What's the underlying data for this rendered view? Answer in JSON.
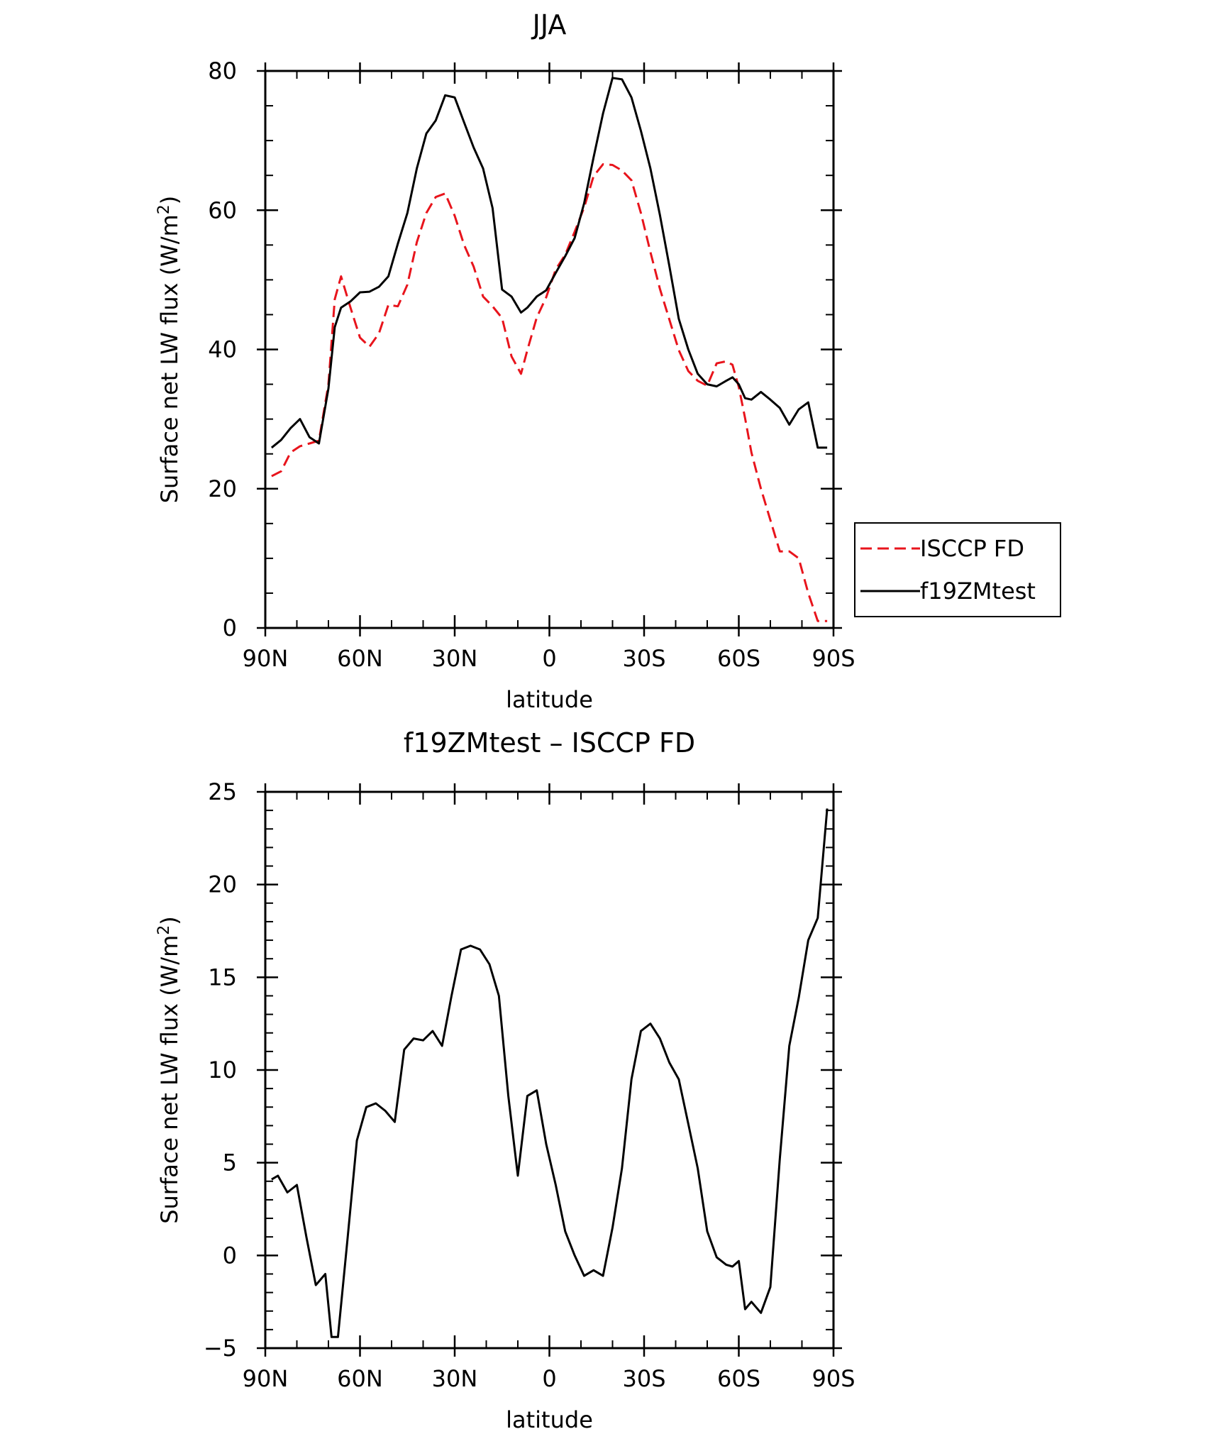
{
  "chart_data": [
    {
      "type": "line",
      "title": "JJA",
      "xlabel": "latitude",
      "ylabel": "Surface net LW flux (W/m²)",
      "ylabel_main": "Surface net LW flux (W/m",
      "ylabel_sup": "2",
      "ylabel_close": ")",
      "xlim": [
        -90,
        90
      ],
      "ylim": [
        0,
        80
      ],
      "x_ticks": [
        {
          "value": -90,
          "label": "90N"
        },
        {
          "value": -60,
          "label": "60N"
        },
        {
          "value": -30,
          "label": "30N"
        },
        {
          "value": 0,
          "label": "0"
        },
        {
          "value": 30,
          "label": "30S"
        },
        {
          "value": 60,
          "label": "60S"
        },
        {
          "value": 90,
          "label": "90S"
        }
      ],
      "y_ticks": [
        0,
        20,
        40,
        60,
        80
      ],
      "y_minor_step": 5,
      "x_minor_step": 10,
      "legend": {
        "placement": "right",
        "entries": [
          "ISCCP FD",
          "f19ZMtest"
        ]
      },
      "series": [
        {
          "name": "ISCCP FD",
          "color": "#e8141c",
          "dash": "dashed",
          "x": [
            -88,
            -85,
            -82,
            -79,
            -76,
            -73,
            -70,
            -68,
            -66,
            -63,
            -60,
            -57,
            -54,
            -51,
            -48,
            -45,
            -42,
            -39,
            -36,
            -33,
            -30,
            -27,
            -24,
            -21,
            -18,
            -15,
            -12,
            -9,
            -7,
            -4,
            -1,
            2,
            5,
            8,
            11,
            14,
            17,
            20,
            23,
            26,
            29,
            32,
            35,
            38,
            41,
            44,
            47,
            50,
            53,
            56,
            58,
            60,
            62,
            64,
            67,
            70,
            73,
            76,
            79,
            82,
            85,
            88
          ],
          "values": [
            21.8,
            22.5,
            25.2,
            26.1,
            26.5,
            26.9,
            35.0,
            47.2,
            50.5,
            46.0,
            41.7,
            40.4,
            42.3,
            46.4,
            46.2,
            49.3,
            55.4,
            59.6,
            61.9,
            62.4,
            59.2,
            55.0,
            51.9,
            47.6,
            46.2,
            44.5,
            39.0,
            36.5,
            39.9,
            44.6,
            47.5,
            51.5,
            53.6,
            56.9,
            60.4,
            64.9,
            66.6,
            66.5,
            65.7,
            64.3,
            59.6,
            54.0,
            48.7,
            44.3,
            39.9,
            36.9,
            35.5,
            34.8,
            38.0,
            38.3,
            37.8,
            34.6,
            30.1,
            25.2,
            20.0,
            15.5,
            11.0,
            11.0,
            10.0,
            5.0,
            1.0,
            1.0
          ]
        },
        {
          "name": "f19ZMtest",
          "color": "#000000",
          "dash": "solid",
          "x": [
            -88,
            -85,
            -82,
            -79,
            -76,
            -73,
            -70,
            -68,
            -66,
            -63,
            -60,
            -57,
            -54,
            -51,
            -48,
            -45,
            -42,
            -39,
            -36,
            -33,
            -30,
            -27,
            -24,
            -21,
            -18,
            -15,
            -12,
            -9,
            -7,
            -4,
            -1,
            2,
            5,
            8,
            11,
            14,
            17,
            20,
            23,
            26,
            29,
            32,
            35,
            38,
            41,
            44,
            47,
            50,
            53,
            56,
            58,
            60,
            62,
            64,
            67,
            70,
            73,
            76,
            79,
            82,
            85,
            88
          ],
          "values": [
            25.9,
            27.0,
            28.7,
            30.0,
            27.4,
            26.5,
            34.4,
            43.2,
            46.0,
            46.9,
            48.2,
            48.3,
            49.0,
            50.5,
            55.2,
            59.6,
            66.0,
            71.0,
            72.9,
            76.5,
            76.2,
            72.6,
            69.0,
            66.0,
            60.3,
            48.6,
            47.6,
            45.3,
            46.0,
            47.6,
            48.5,
            51.0,
            53.4,
            56.0,
            61.0,
            67.6,
            73.9,
            79.0,
            78.8,
            76.2,
            71.4,
            66.0,
            59.3,
            52.0,
            44.4,
            40.0,
            36.5,
            35.0,
            34.7,
            35.5,
            36.0,
            35.0,
            33.0,
            32.8,
            33.9,
            32.8,
            31.6,
            29.2,
            31.4,
            32.4,
            25.9,
            25.9
          ]
        }
      ]
    },
    {
      "type": "line",
      "title": "f19ZMtest – ISCCP FD",
      "xlabel": "latitude",
      "ylabel": "Surface net LW flux (W/m²)",
      "ylabel_main": "Surface net LW flux (W/m",
      "ylabel_sup": "2",
      "ylabel_close": ")",
      "xlim": [
        -90,
        90
      ],
      "ylim": [
        -5,
        25
      ],
      "x_ticks": [
        {
          "value": -90,
          "label": "90N"
        },
        {
          "value": -60,
          "label": "60N"
        },
        {
          "value": -30,
          "label": "30N"
        },
        {
          "value": 0,
          "label": "0"
        },
        {
          "value": 30,
          "label": "30S"
        },
        {
          "value": 60,
          "label": "60S"
        },
        {
          "value": 90,
          "label": "90S"
        }
      ],
      "y_ticks": [
        {
          "value": -5,
          "label": "−5"
        },
        {
          "value": 0,
          "label": "0"
        },
        {
          "value": 5,
          "label": "5"
        },
        {
          "value": 10,
          "label": "10"
        },
        {
          "value": 15,
          "label": "15"
        },
        {
          "value": 20,
          "label": "20"
        },
        {
          "value": 25,
          "label": "25"
        }
      ],
      "y_minor_step": 1,
      "x_minor_step": 10,
      "series": [
        {
          "color": "#000000",
          "dash": "solid",
          "x": [
            -88,
            -86,
            -83,
            -80,
            -77,
            -74,
            -71,
            -69,
            -67,
            -64,
            -61,
            -58,
            -55,
            -52,
            -49,
            -46,
            -43,
            -40,
            -37,
            -34,
            -31,
            -28,
            -25,
            -22,
            -19,
            -16,
            -13,
            -10,
            -7,
            -4,
            -1,
            2,
            5,
            8,
            11,
            14,
            17,
            20,
            23,
            26,
            29,
            32,
            35,
            38,
            41,
            44,
            47,
            50,
            53,
            56,
            58,
            60,
            62,
            64,
            67,
            70,
            73,
            76,
            79,
            82,
            85,
            88
          ],
          "values": [
            4.1,
            4.3,
            3.4,
            3.8,
            1.0,
            -1.6,
            -1.0,
            -4.4,
            -4.4,
            0.8,
            6.2,
            8.0,
            8.2,
            7.8,
            7.2,
            11.1,
            11.7,
            11.6,
            12.1,
            11.3,
            14.0,
            16.5,
            16.7,
            16.5,
            15.7,
            14.0,
            8.6,
            4.3,
            8.6,
            8.9,
            6.0,
            3.8,
            1.3,
            0.0,
            -1.1,
            -0.8,
            -1.1,
            1.5,
            4.7,
            9.5,
            12.1,
            12.5,
            11.7,
            10.4,
            9.5,
            7.1,
            4.7,
            1.3,
            -0.1,
            -0.5,
            -0.6,
            -0.3,
            -2.9,
            -2.5,
            -3.1,
            -1.7,
            5.2,
            11.3,
            13.9,
            17.0,
            18.2,
            24.1
          ]
        }
      ]
    }
  ]
}
